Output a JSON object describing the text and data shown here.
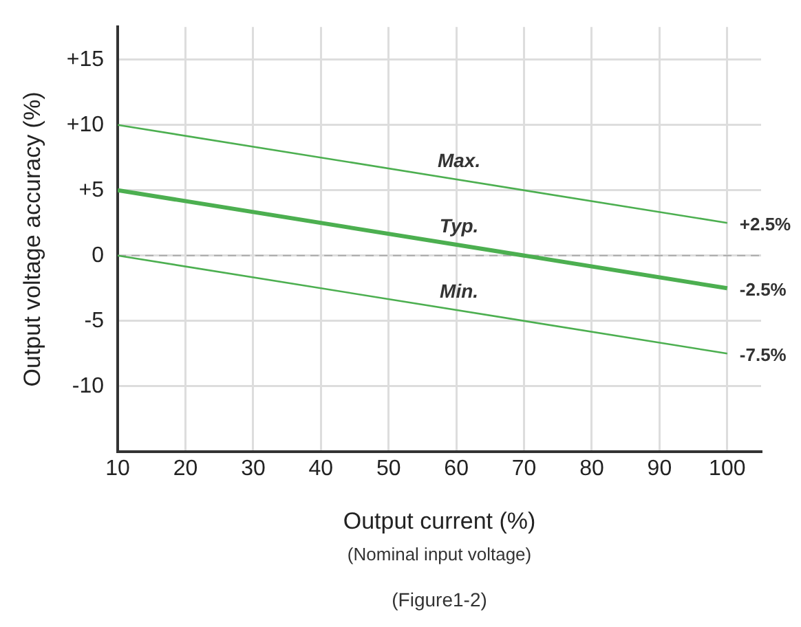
{
  "chart_data": {
    "type": "line",
    "xlabel": "Output current (%)",
    "ylabel": "Output voltage accuracy (%)",
    "x": [
      10,
      100
    ],
    "series": [
      {
        "name": "Max.",
        "color": "#4caf50",
        "values": [
          10,
          2.5
        ],
        "value_labels": [
          null,
          "+2.5%"
        ]
      },
      {
        "name": "Typ.",
        "color": "#4caf50",
        "values": [
          5,
          -2.5
        ],
        "value_labels": [
          null,
          "-2.5%"
        ]
      },
      {
        "name": "Min.",
        "color": "#4caf50",
        "values": [
          0,
          -7.5
        ],
        "value_labels": [
          null,
          "-7.5%"
        ]
      }
    ],
    "xlim": [
      10,
      105
    ],
    "xticks": [
      10,
      20,
      30,
      40,
      50,
      60,
      70,
      80,
      90,
      100
    ],
    "ylim": [
      -15,
      17.5
    ],
    "yticks": [
      {
        "value": 15,
        "label": "+15"
      },
      {
        "value": 10,
        "label": "+10"
      },
      {
        "value": 5,
        "label": "+5"
      },
      0,
      -5,
      -10
    ],
    "ref_lines": [
      {
        "axis": "y",
        "value": 0,
        "color": "#aaaaaa",
        "line_style": "dashed"
      }
    ],
    "annotations": [
      "(Nominal input voltage)",
      "(Figure1-2)"
    ],
    "grid": true,
    "legend": false,
    "marker": "none",
    "line_style": "solid"
  }
}
